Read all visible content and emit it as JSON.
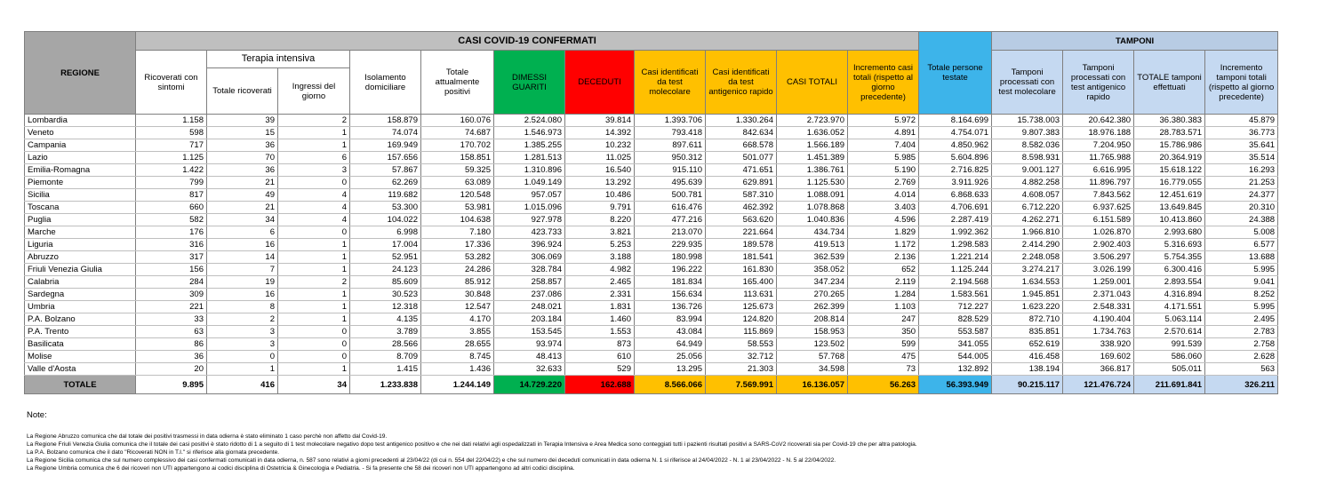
{
  "table": {
    "header": {
      "regione": "REGIONE",
      "casi_title": "CASI COVID-19 CONFERMATI",
      "tamponi_title": "TAMPONI",
      "terapia_intensiva": "Terapia intensiva",
      "columns": [
        "Ricoverati con sintomi",
        "Totale ricoverati",
        "Ingressi del giorno",
        "Isolamento domiciliare",
        "Totale attualmente positivi",
        "DIMESSI GUARITI",
        "DECEDUTI",
        "Casi identificati da test molecolare",
        "Casi identificati da test antigenico rapido",
        "CASI TOTALI",
        "Incremento casi totali (rispetto al giorno precedente)",
        "Totale persone testate",
        "Tamponi processati con test molecolare",
        "Tamponi processati con test antigenico rapido",
        "TOTALE tamponi effettuati",
        "Incremento tamponi totali (rispetto al giorno precedente)"
      ]
    },
    "rows": [
      [
        "Lombardia",
        "1.158",
        "39",
        "2",
        "158.879",
        "160.076",
        "2.524.080",
        "39.814",
        "1.393.706",
        "1.330.264",
        "2.723.970",
        "5.972",
        "8.164.699",
        "15.738.003",
        "20.642.380",
        "36.380.383",
        "45.879"
      ],
      [
        "Veneto",
        "598",
        "15",
        "1",
        "74.074",
        "74.687",
        "1.546.973",
        "14.392",
        "793.418",
        "842.634",
        "1.636.052",
        "4.891",
        "4.754.071",
        "9.807.383",
        "18.976.188",
        "28.783.571",
        "36.773"
      ],
      [
        "Campania",
        "717",
        "36",
        "1",
        "169.949",
        "170.702",
        "1.385.255",
        "10.232",
        "897.611",
        "668.578",
        "1.566.189",
        "7.404",
        "4.850.962",
        "8.582.036",
        "7.204.950",
        "15.786.986",
        "35.641"
      ],
      [
        "Lazio",
        "1.125",
        "70",
        "6",
        "157.656",
        "158.851",
        "1.281.513",
        "11.025",
        "950.312",
        "501.077",
        "1.451.389",
        "5.985",
        "5.604.896",
        "8.598.931",
        "11.765.988",
        "20.364.919",
        "35.514"
      ],
      [
        "Emilia-Romagna",
        "1.422",
        "36",
        "3",
        "57.867",
        "59.325",
        "1.310.896",
        "16.540",
        "915.110",
        "471.651",
        "1.386.761",
        "5.190",
        "2.716.825",
        "9.001.127",
        "6.616.995",
        "15.618.122",
        "16.293"
      ],
      [
        "Piemonte",
        "799",
        "21",
        "0",
        "62.269",
        "63.089",
        "1.049.149",
        "13.292",
        "495.639",
        "629.891",
        "1.125.530",
        "2.769",
        "3.911.926",
        "4.882.258",
        "11.896.797",
        "16.779.055",
        "21.253"
      ],
      [
        "Sicilia",
        "817",
        "49",
        "4",
        "119.682",
        "120.548",
        "957.057",
        "10.486",
        "500.781",
        "587.310",
        "1.088.091",
        "4.014",
        "6.868.633",
        "4.608.057",
        "7.843.562",
        "12.451.619",
        "24.377"
      ],
      [
        "Toscana",
        "660",
        "21",
        "4",
        "53.300",
        "53.981",
        "1.015.096",
        "9.791",
        "616.476",
        "462.392",
        "1.078.868",
        "3.403",
        "4.706.691",
        "6.712.220",
        "6.937.625",
        "13.649.845",
        "20.310"
      ],
      [
        "Puglia",
        "582",
        "34",
        "4",
        "104.022",
        "104.638",
        "927.978",
        "8.220",
        "477.216",
        "563.620",
        "1.040.836",
        "4.596",
        "2.287.419",
        "4.262.271",
        "6.151.589",
        "10.413.860",
        "24.388"
      ],
      [
        "Marche",
        "176",
        "6",
        "0",
        "6.998",
        "7.180",
        "423.733",
        "3.821",
        "213.070",
        "221.664",
        "434.734",
        "1.829",
        "1.992.362",
        "1.966.810",
        "1.026.870",
        "2.993.680",
        "5.008"
      ],
      [
        "Liguria",
        "316",
        "16",
        "1",
        "17.004",
        "17.336",
        "396.924",
        "5.253",
        "229.935",
        "189.578",
        "419.513",
        "1.172",
        "1.298.583",
        "2.414.290",
        "2.902.403",
        "5.316.693",
        "6.577"
      ],
      [
        "Abruzzo",
        "317",
        "14",
        "1",
        "52.951",
        "53.282",
        "306.069",
        "3.188",
        "180.998",
        "181.541",
        "362.539",
        "2.136",
        "1.221.214",
        "2.248.058",
        "3.506.297",
        "5.754.355",
        "13.688"
      ],
      [
        "Friuli Venezia Giulia",
        "156",
        "7",
        "1",
        "24.123",
        "24.286",
        "328.784",
        "4.982",
        "196.222",
        "161.830",
        "358.052",
        "652",
        "1.125.244",
        "3.274.217",
        "3.026.199",
        "6.300.416",
        "5.995"
      ],
      [
        "Calabria",
        "284",
        "19",
        "2",
        "85.609",
        "85.912",
        "258.857",
        "2.465",
        "181.834",
        "165.400",
        "347.234",
        "2.119",
        "2.194.568",
        "1.634.553",
        "1.259.001",
        "2.893.554",
        "9.041"
      ],
      [
        "Sardegna",
        "309",
        "16",
        "1",
        "30.523",
        "30.848",
        "237.086",
        "2.331",
        "156.634",
        "113.631",
        "270.265",
        "1.284",
        "1.583.561",
        "1.945.851",
        "2.371.043",
        "4.316.894",
        "8.252"
      ],
      [
        "Umbria",
        "221",
        "8",
        "1",
        "12.318",
        "12.547",
        "248.021",
        "1.831",
        "136.726",
        "125.673",
        "262.399",
        "1.103",
        "712.227",
        "1.623.220",
        "2.548.331",
        "4.171.551",
        "5.995"
      ],
      [
        "P.A. Bolzano",
        "33",
        "2",
        "1",
        "4.135",
        "4.170",
        "203.184",
        "1.460",
        "83.994",
        "124.820",
        "208.814",
        "247",
        "828.529",
        "872.710",
        "4.190.404",
        "5.063.114",
        "2.495"
      ],
      [
        "P.A. Trento",
        "63",
        "3",
        "0",
        "3.789",
        "3.855",
        "153.545",
        "1.553",
        "43.084",
        "115.869",
        "158.953",
        "350",
        "553.587",
        "835.851",
        "1.734.763",
        "2.570.614",
        "2.783"
      ],
      [
        "Basilicata",
        "86",
        "3",
        "0",
        "28.566",
        "28.655",
        "93.974",
        "873",
        "64.949",
        "58.553",
        "123.502",
        "599",
        "341.055",
        "652.619",
        "338.920",
        "991.539",
        "2.758"
      ],
      [
        "Molise",
        "36",
        "0",
        "0",
        "8.709",
        "8.745",
        "48.413",
        "610",
        "25.056",
        "32.712",
        "57.768",
        "475",
        "544.005",
        "416.458",
        "169.602",
        "586.060",
        "2.628"
      ],
      [
        "Valle d'Aosta",
        "20",
        "1",
        "1",
        "1.415",
        "1.436",
        "32.633",
        "529",
        "13.295",
        "21.303",
        "34.598",
        "73",
        "132.892",
        "138.194",
        "366.817",
        "505.011",
        "563"
      ]
    ],
    "total": [
      "TOTALE",
      "9.895",
      "416",
      "34",
      "1.233.838",
      "1.244.149",
      "14.729.220",
      "162.688",
      "8.566.066",
      "7.569.991",
      "16.136.057",
      "56.263",
      "56.393.949",
      "90.215.117",
      "121.476.724",
      "211.691.841",
      "326.211"
    ]
  },
  "notes": {
    "title": "Note:",
    "lines": [
      "La Regione Abruzzo  comunica che dal totale dei positivi trasmessi in data odierna è stato eliminato 1 caso perchè non affetto dal Covid-19.",
      "La Regione Friuli Venezia Giulia comunica che il totale dei casi positivi è stato ridotto di 1 a seguito di 1 test molecolare negativo dopo test antigenico positivo e che nei dati relativi agli ospedalizzati in Terapia Intensiva e Area Medica sono conteggiati tutti i pazienti risultati positivi a SARS-CoV2 ricoverati sia per Covid-19 che per altra patologia.",
      "La P.A. Bolzano comunica che il dato \"Ricoverati NON in T.I.\" si riferisce alla giornata precedente.",
      "La Regione Sicilia comunica che sul numero complessivo dei casi confermati comunicati in data odierna, n. 587 sono relativi a giorni precedenti al 23/04/22 (di cui n. 554 del 22/04/22) e che sul numero dei deceduti comunicati in data odierna N. 1 si riferisce al 24/04/2022 - N. 1 al 23/04/2022 - N. 5 al 22/04/2022.",
      "La Regione Umbria comunica che 6 dei ricoveri non UTI appartengono ai codici disciplina di Ostetricia & Ginecologia e Pediatria. - Si fa presente che 58 dei ricoveri non UTI appartengono ad altri codici disciplina."
    ]
  }
}
